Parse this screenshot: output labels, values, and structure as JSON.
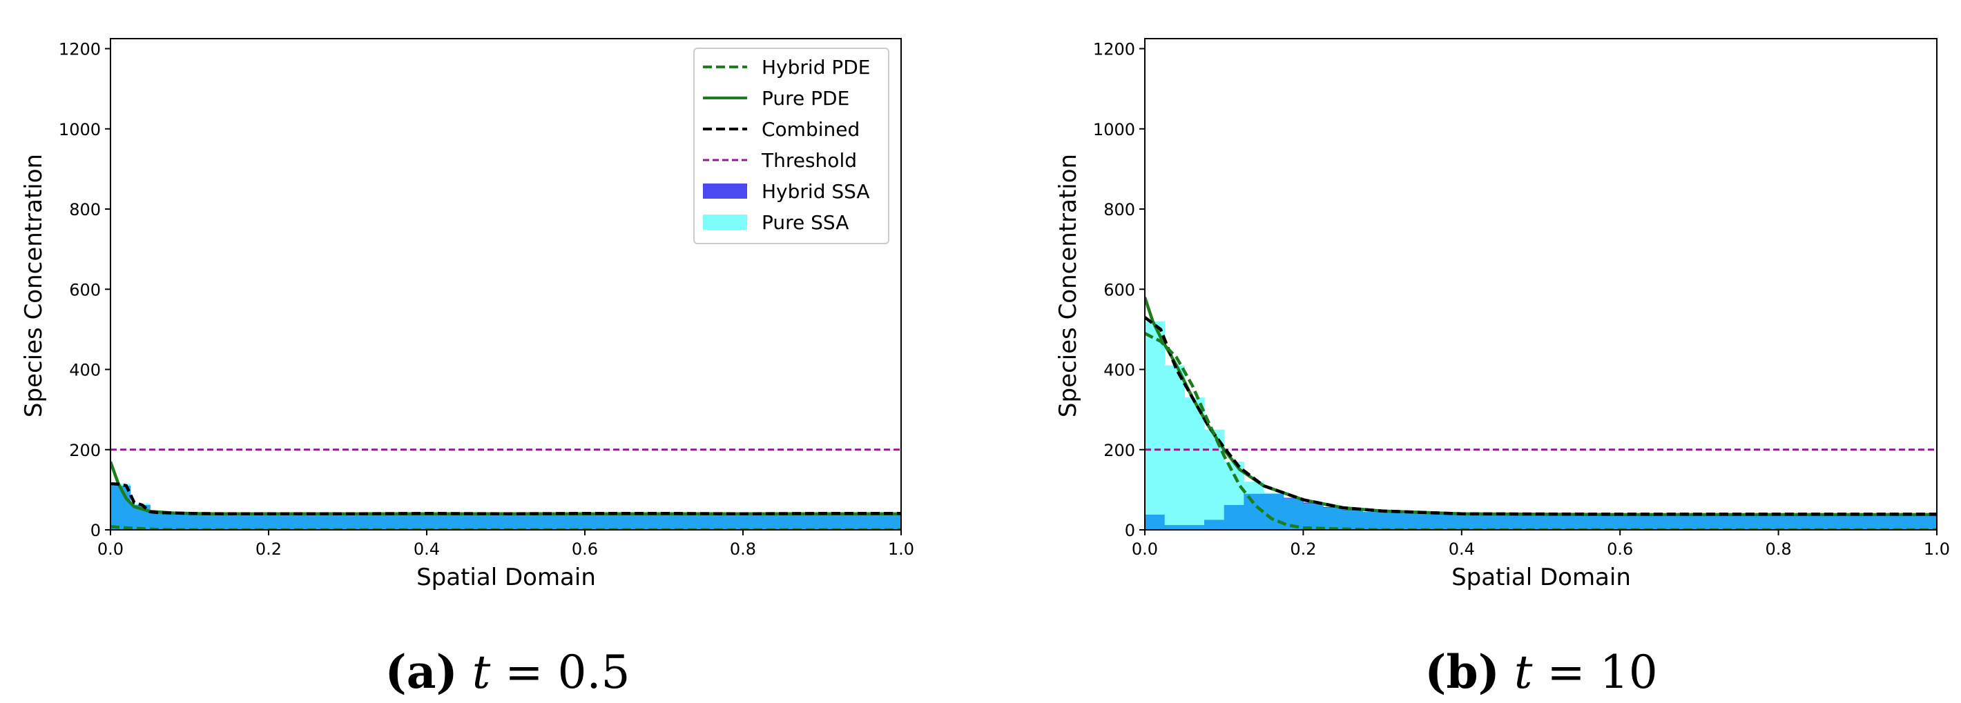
{
  "colors": {
    "hybrid_ssa": "#4a4af0",
    "pure_ssa": "#7ffcfc",
    "overlap": "#21a4f2",
    "pde": "#1b7d1b",
    "combined": "#000000",
    "threshold": "#8b1c8b"
  },
  "chart_data": [
    {
      "type": "bar",
      "panel": "a",
      "caption_letter": "(a)",
      "caption_var": "t",
      "caption_eq": "=",
      "caption_value": "0.5",
      "title": "",
      "xlabel": "Spatial Domain",
      "ylabel": "Species Concentration",
      "xlim": [
        0,
        1
      ],
      "ylim": [
        0,
        1225
      ],
      "xticks": [
        0.0,
        0.2,
        0.4,
        0.6,
        0.8,
        1.0
      ],
      "xtick_labels": [
        "0.0",
        "0.2",
        "0.4",
        "0.6",
        "0.8",
        "1.0"
      ],
      "yticks": [
        0,
        200,
        400,
        600,
        800,
        1000,
        1200
      ],
      "ytick_labels": [
        "0",
        "200",
        "400",
        "600",
        "800",
        "1000",
        "1200"
      ],
      "threshold": 200,
      "legend_position": "upper-right",
      "legend": [
        "Hybrid PDE",
        "Pure PDE",
        "Combined",
        "Threshold",
        "Hybrid SSA",
        "Pure SSA"
      ],
      "bin_width": 0.025,
      "pure_ssa": [
        115,
        65,
        45,
        42,
        41,
        40,
        41,
        40,
        39,
        40,
        40,
        41,
        40,
        40,
        41,
        40,
        41,
        40,
        41,
        40,
        40,
        41,
        40,
        40,
        40,
        41,
        40,
        40,
        41,
        40,
        40,
        40,
        40,
        40,
        40,
        40,
        40,
        40,
        40,
        40
      ],
      "hybrid_ssa": [
        110,
        62,
        44,
        41,
        40,
        40,
        40,
        40,
        39,
        40,
        40,
        40,
        40,
        40,
        40,
        40,
        41,
        40,
        41,
        40,
        40,
        40,
        40,
        40,
        40,
        41,
        40,
        40,
        41,
        40,
        40,
        40,
        40,
        38,
        40,
        40,
        40,
        40,
        40,
        40
      ],
      "hybrid_pde": {
        "x": [
          0,
          0.02,
          0.04,
          0.06,
          0.1,
          0.2,
          1.0
        ],
        "y": [
          8,
          5,
          3,
          1,
          0,
          0,
          0
        ]
      },
      "pure_pde": {
        "x": [
          0,
          0.01,
          0.02,
          0.03,
          0.05,
          0.08,
          0.12,
          0.2,
          0.4,
          0.6,
          0.8,
          1.0
        ],
        "y": [
          170,
          115,
          78,
          58,
          46,
          42,
          40,
          40,
          40,
          40,
          40,
          40
        ]
      },
      "combined": {
        "x": [
          0,
          0.01,
          0.02,
          0.03,
          0.04,
          0.05,
          0.06,
          0.08,
          0.1,
          0.15,
          0.2,
          0.3,
          0.4,
          0.5,
          0.6,
          0.7,
          0.8,
          0.9,
          1.0
        ],
        "y": [
          115,
          114,
          110,
          68,
          62,
          45,
          43,
          42,
          41,
          40,
          40,
          40,
          41,
          40,
          41,
          41,
          40,
          41,
          41
        ]
      }
    },
    {
      "type": "bar",
      "panel": "b",
      "caption_letter": "(b)",
      "caption_var": "t",
      "caption_eq": "=",
      "caption_value": "10",
      "title": "",
      "xlabel": "Spatial Domain",
      "ylabel": "Species Concentration",
      "xlim": [
        0,
        1
      ],
      "ylim": [
        0,
        1225
      ],
      "xticks": [
        0.0,
        0.2,
        0.4,
        0.6,
        0.8,
        1.0
      ],
      "xtick_labels": [
        "0.0",
        "0.2",
        "0.4",
        "0.6",
        "0.8",
        "1.0"
      ],
      "yticks": [
        0,
        200,
        400,
        600,
        800,
        1000,
        1200
      ],
      "ytick_labels": [
        "0",
        "200",
        "400",
        "600",
        "800",
        "1000",
        "1200"
      ],
      "threshold": 200,
      "legend_position": "none",
      "legend": [],
      "bin_width": 0.025,
      "pure_ssa": [
        520,
        410,
        330,
        250,
        170,
        120,
        92,
        78,
        65,
        55,
        48,
        45,
        43,
        41,
        40,
        40,
        40,
        39,
        40,
        39,
        39,
        39,
        39,
        38,
        38,
        38,
        38,
        38,
        38,
        38,
        38,
        38,
        38,
        38,
        38,
        38,
        38,
        38,
        38,
        38
      ],
      "hybrid_ssa": [
        38,
        12,
        12,
        25,
        62,
        90,
        90,
        80,
        68,
        57,
        50,
        45,
        43,
        41,
        40,
        40,
        40,
        39,
        40,
        39,
        39,
        39,
        39,
        38,
        38,
        38,
        38,
        38,
        38,
        38,
        38,
        38,
        38,
        38,
        38,
        38,
        38,
        38,
        38,
        38
      ],
      "hybrid_pde": {
        "x": [
          0,
          0.02,
          0.04,
          0.06,
          0.08,
          0.1,
          0.12,
          0.14,
          0.16,
          0.18,
          0.2,
          0.25,
          0.3,
          1.0
        ],
        "y": [
          490,
          470,
          430,
          360,
          270,
          185,
          110,
          60,
          28,
          12,
          5,
          2,
          0,
          0
        ]
      },
      "pure_pde": {
        "x": [
          0,
          0.01,
          0.02,
          0.04,
          0.06,
          0.08,
          0.1,
          0.12,
          0.15,
          0.2,
          0.25,
          0.3,
          0.4,
          0.6,
          0.8,
          1.0
        ],
        "y": [
          580,
          520,
          480,
          410,
          330,
          260,
          200,
          150,
          110,
          75,
          55,
          47,
          40,
          38,
          38,
          38
        ]
      },
      "combined": {
        "x": [
          0,
          0.01,
          0.02,
          0.03,
          0.04,
          0.06,
          0.08,
          0.1,
          0.12,
          0.15,
          0.2,
          0.25,
          0.3,
          0.4,
          0.6,
          0.8,
          1.0
        ],
        "y": [
          530,
          515,
          500,
          450,
          400,
          330,
          260,
          205,
          155,
          110,
          75,
          55,
          47,
          40,
          39,
          39,
          39
        ]
      }
    }
  ]
}
